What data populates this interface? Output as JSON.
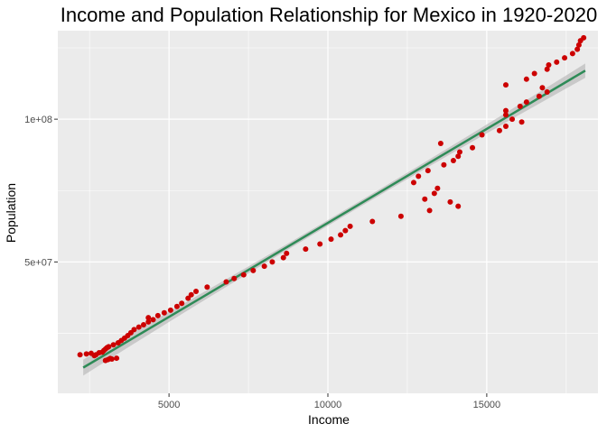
{
  "chart_data": {
    "type": "scatter",
    "title": "Income and Population Relationship for Mexico in 1920-2020",
    "xlabel": "Income",
    "ylabel": "Population",
    "xlim": [
      1500,
      18500
    ],
    "ylim": [
      4000000,
      131000000
    ],
    "x_ticks": [
      5000,
      10000,
      15000
    ],
    "x_tick_labels": [
      "5000",
      "10000",
      "15000"
    ],
    "y_ticks": [
      50000000,
      100000000
    ],
    "y_tick_labels": [
      "5e+07",
      "1e+08"
    ],
    "grid": true,
    "point_color": "#cc0000",
    "fit_color": "#2e8b57",
    "band_color": "#b3b3b3",
    "panel_color": "#ebebeb",
    "fit_line": {
      "x": [
        2300,
        18100
      ],
      "y": [
        13000000,
        117000000
      ],
      "band_halfwidth_start": 2800000,
      "band_halfwidth_mid": 1000000,
      "band_halfwidth_end": 2500000
    },
    "points": [
      {
        "x": 2200,
        "y": 17500000
      },
      {
        "x": 2400,
        "y": 17800000
      },
      {
        "x": 2550,
        "y": 18000000
      },
      {
        "x": 2650,
        "y": 17200000
      },
      {
        "x": 2700,
        "y": 17500000
      },
      {
        "x": 2800,
        "y": 18200000
      },
      {
        "x": 2900,
        "y": 18400000
      },
      {
        "x": 2950,
        "y": 19000000
      },
      {
        "x": 3000,
        "y": 19500000
      },
      {
        "x": 3050,
        "y": 20000000
      },
      {
        "x": 3100,
        "y": 20300000
      },
      {
        "x": 3000,
        "y": 15500000
      },
      {
        "x": 3080,
        "y": 15800000
      },
      {
        "x": 3150,
        "y": 16200000
      },
      {
        "x": 3200,
        "y": 16000000
      },
      {
        "x": 3350,
        "y": 16300000
      },
      {
        "x": 3250,
        "y": 21000000
      },
      {
        "x": 3400,
        "y": 21700000
      },
      {
        "x": 3500,
        "y": 22500000
      },
      {
        "x": 3600,
        "y": 23300000
      },
      {
        "x": 3700,
        "y": 24200000
      },
      {
        "x": 3800,
        "y": 25200000
      },
      {
        "x": 3900,
        "y": 26300000
      },
      {
        "x": 4050,
        "y": 27200000
      },
      {
        "x": 4200,
        "y": 28000000
      },
      {
        "x": 4350,
        "y": 29000000
      },
      {
        "x": 4500,
        "y": 29800000
      },
      {
        "x": 4350,
        "y": 30500000
      },
      {
        "x": 4650,
        "y": 31200000
      },
      {
        "x": 4850,
        "y": 32200000
      },
      {
        "x": 5050,
        "y": 33100000
      },
      {
        "x": 5250,
        "y": 34400000
      },
      {
        "x": 5400,
        "y": 35500000
      },
      {
        "x": 5600,
        "y": 37300000
      },
      {
        "x": 5700,
        "y": 38500000
      },
      {
        "x": 5850,
        "y": 39700000
      },
      {
        "x": 6200,
        "y": 41200000
      },
      {
        "x": 6800,
        "y": 43000000
      },
      {
        "x": 7050,
        "y": 44200000
      },
      {
        "x": 7350,
        "y": 45500000
      },
      {
        "x": 7650,
        "y": 47000000
      },
      {
        "x": 8000,
        "y": 48500000
      },
      {
        "x": 8250,
        "y": 50000000
      },
      {
        "x": 8600,
        "y": 51500000
      },
      {
        "x": 8700,
        "y": 53000000
      },
      {
        "x": 9300,
        "y": 54500000
      },
      {
        "x": 9750,
        "y": 56300000
      },
      {
        "x": 10100,
        "y": 58000000
      },
      {
        "x": 10400,
        "y": 59500000
      },
      {
        "x": 10550,
        "y": 61000000
      },
      {
        "x": 10700,
        "y": 62500000
      },
      {
        "x": 11400,
        "y": 64200000
      },
      {
        "x": 12300,
        "y": 66000000
      },
      {
        "x": 12700,
        "y": 77800000
      },
      {
        "x": 12850,
        "y": 80000000
      },
      {
        "x": 13050,
        "y": 72000000
      },
      {
        "x": 13150,
        "y": 82000000
      },
      {
        "x": 13200,
        "y": 68000000
      },
      {
        "x": 13350,
        "y": 74000000
      },
      {
        "x": 13450,
        "y": 75800000
      },
      {
        "x": 13550,
        "y": 91500000
      },
      {
        "x": 13650,
        "y": 84000000
      },
      {
        "x": 13850,
        "y": 71000000
      },
      {
        "x": 13950,
        "y": 85500000
      },
      {
        "x": 14100,
        "y": 87000000
      },
      {
        "x": 14100,
        "y": 69500000
      },
      {
        "x": 14150,
        "y": 88500000
      },
      {
        "x": 14550,
        "y": 90000000
      },
      {
        "x": 14850,
        "y": 94500000
      },
      {
        "x": 15400,
        "y": 96000000
      },
      {
        "x": 15600,
        "y": 97500000
      },
      {
        "x": 15600,
        "y": 101500000
      },
      {
        "x": 15600,
        "y": 103000000
      },
      {
        "x": 15600,
        "y": 112000000
      },
      {
        "x": 15800,
        "y": 100000000
      },
      {
        "x": 16100,
        "y": 99000000
      },
      {
        "x": 16050,
        "y": 104500000
      },
      {
        "x": 16250,
        "y": 106000000
      },
      {
        "x": 16250,
        "y": 114000000
      },
      {
        "x": 16500,
        "y": 116000000
      },
      {
        "x": 16650,
        "y": 108000000
      },
      {
        "x": 16750,
        "y": 111000000
      },
      {
        "x": 16900,
        "y": 109500000
      },
      {
        "x": 16900,
        "y": 117500000
      },
      {
        "x": 16950,
        "y": 119000000
      },
      {
        "x": 17200,
        "y": 120000000
      },
      {
        "x": 17450,
        "y": 121500000
      },
      {
        "x": 17700,
        "y": 123000000
      },
      {
        "x": 17850,
        "y": 124500000
      },
      {
        "x": 17900,
        "y": 126000000
      },
      {
        "x": 17950,
        "y": 127500000
      },
      {
        "x": 18050,
        "y": 128500000
      }
    ]
  }
}
